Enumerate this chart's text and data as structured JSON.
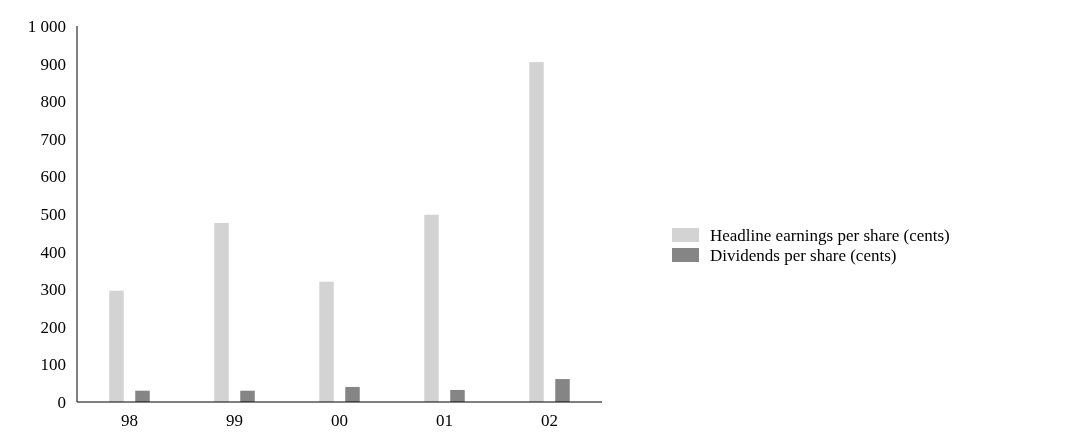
{
  "chart_data": {
    "type": "bar",
    "categories": [
      "98",
      "99",
      "00",
      "01",
      "02"
    ],
    "series": [
      {
        "name": "Headline earnings per share (cents)",
        "color": "#d3d3d3",
        "values": [
          296,
          476,
          320,
          498,
          904
        ]
      },
      {
        "name": "Dividends per share (cents)",
        "color": "#858585",
        "values": [
          30,
          30,
          40,
          32,
          61
        ]
      }
    ],
    "ylim": [
      0,
      1000
    ],
    "yticks": [
      0,
      100,
      200,
      300,
      400,
      500,
      600,
      700,
      800,
      900,
      {
        "value": 1000,
        "label": "1 000"
      }
    ],
    "grid": false,
    "legend": "right"
  }
}
